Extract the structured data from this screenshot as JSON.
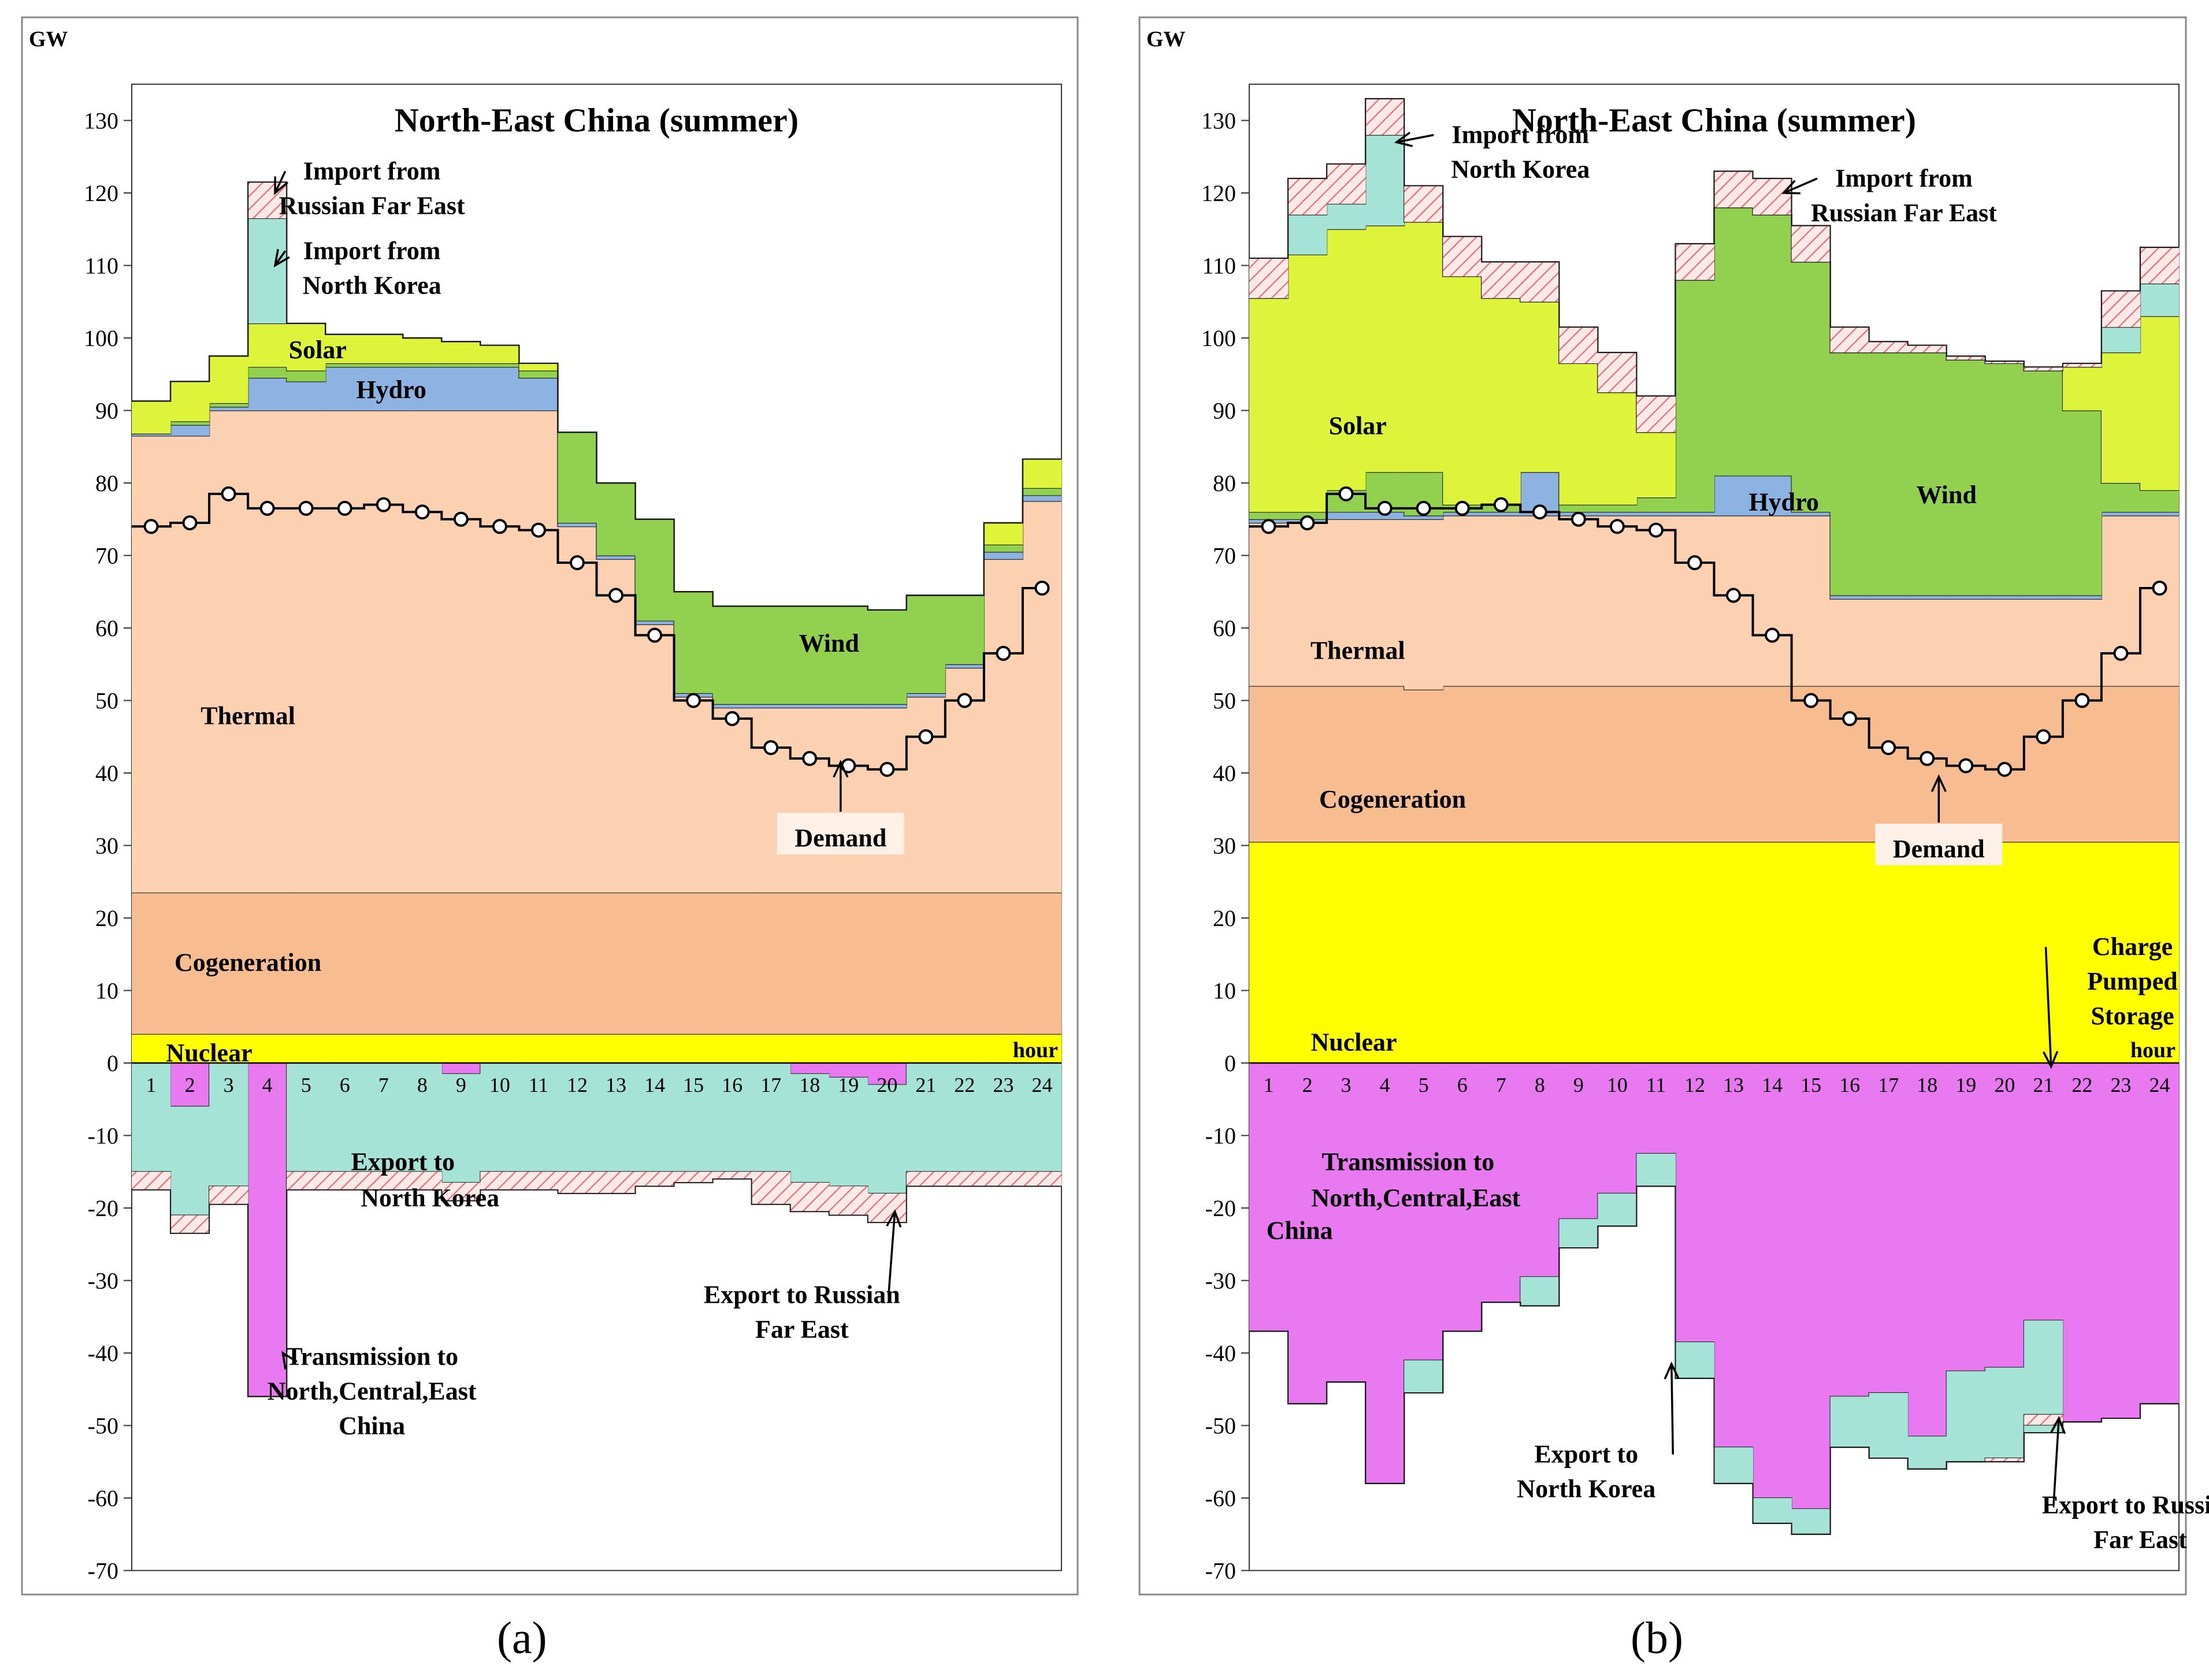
{
  "figure": {
    "labels": [
      "a",
      "b"
    ]
  },
  "colors": {
    "nuclear": "#ffff00",
    "cogeneration": "#f7bc8f",
    "thermal": "#fbd1b1",
    "hydro": "#8db3e2",
    "wind": "#92d050",
    "solar": "#ddf43a",
    "import_rfe": "#fbe0e0",
    "import_nk": "#a6e3d7",
    "transmission": "#e879f0",
    "export_nk": "#a6e3d7",
    "export_rfe": "#fbe0e0"
  },
  "chart_data": [
    {
      "type": "area",
      "panel": "a",
      "title": "North-East China (summer)",
      "ylabel": "GW",
      "xlabel": "hour",
      "ylim": [
        -70,
        135
      ],
      "yticks": [
        130,
        120,
        110,
        100,
        90,
        80,
        70,
        60,
        50,
        40,
        30,
        20,
        10,
        0,
        -10,
        -20,
        -30,
        -40,
        -50,
        -60,
        -70
      ],
      "x": [
        1,
        2,
        3,
        4,
        5,
        6,
        7,
        8,
        9,
        10,
        11,
        12,
        13,
        14,
        15,
        16,
        17,
        18,
        19,
        20,
        21,
        22,
        23,
        24
      ],
      "positive_series": [
        {
          "name": "Nuclear",
          "key": "nuclear",
          "values": [
            4,
            4,
            4,
            4,
            4,
            4,
            4,
            4,
            4,
            4,
            4,
            4,
            4,
            4,
            4,
            4,
            4,
            4,
            4,
            4,
            4,
            4,
            4,
            4
          ]
        },
        {
          "name": "Cogeneration",
          "key": "cogeneration",
          "values": [
            19.5,
            19.5,
            19.5,
            19.5,
            19.5,
            19.5,
            19.5,
            19.5,
            19.5,
            19.5,
            19.5,
            19.5,
            19.5,
            19.5,
            19.5,
            19.5,
            19.5,
            19.5,
            19.5,
            19.5,
            19.5,
            19.5,
            19.5,
            19.5
          ]
        },
        {
          "name": "Thermal",
          "key": "thermal",
          "values": [
            63,
            63,
            66.5,
            66.5,
            66.5,
            66.5,
            66.5,
            66.5,
            66.5,
            66.5,
            66.5,
            50.5,
            46,
            37,
            27,
            25.5,
            25.5,
            25.5,
            25.5,
            25.5,
            27,
            31,
            46,
            54
          ]
        },
        {
          "name": "Hydro",
          "key": "hydro",
          "values": [
            0.3,
            1.5,
            0.5,
            4.5,
            4,
            6,
            6,
            6,
            6,
            6,
            4.5,
            0.5,
            0.5,
            0.5,
            0.5,
            0.5,
            0.5,
            0.5,
            0.5,
            0.5,
            0.5,
            0.5,
            1,
            0.8
          ]
        },
        {
          "name": "Wind",
          "key": "wind",
          "values": [
            0,
            0.5,
            0.5,
            1.5,
            1.5,
            0.5,
            0.5,
            0.5,
            0.5,
            0.5,
            1,
            12.5,
            10,
            14,
            14,
            13.5,
            13.5,
            13.5,
            13.5,
            13,
            13.5,
            9.5,
            1,
            1
          ]
        },
        {
          "name": "Solar",
          "key": "solar",
          "values": [
            4.5,
            5.5,
            6.5,
            6,
            6.5,
            4,
            4,
            3.5,
            3,
            2.5,
            1,
            0,
            0,
            0,
            0,
            0,
            0,
            0,
            0,
            0,
            0,
            0,
            3,
            4
          ]
        },
        {
          "name": "Import from North Korea",
          "key": "import_nk",
          "values": [
            0,
            0,
            0,
            14.5,
            0,
            0,
            0,
            0,
            0,
            0,
            0,
            0,
            0,
            0,
            0,
            0,
            0,
            0,
            0,
            0,
            0,
            0,
            0,
            0
          ]
        },
        {
          "name": "Import from Russian Far East",
          "key": "import_rfe",
          "values": [
            0,
            0,
            0,
            5,
            0,
            0,
            0,
            0,
            0,
            0,
            0,
            0,
            0,
            0,
            0,
            0,
            0,
            0,
            0,
            0,
            0,
            0,
            0,
            0
          ]
        }
      ],
      "negative_series": [
        {
          "name": "Transmission to North,Central,East China",
          "key": "transmission",
          "values": [
            0,
            -6,
            0,
            -46,
            0,
            0,
            0,
            0,
            -1.5,
            0,
            0,
            0,
            0,
            0,
            0,
            0,
            0,
            -1.5,
            -2,
            -3,
            0,
            0,
            0,
            0
          ]
        },
        {
          "name": "Export to North Korea",
          "key": "export_nk",
          "values": [
            -15,
            -15,
            -17,
            0,
            -15,
            -15,
            -15,
            -15,
            -15,
            -15,
            -15,
            -15,
            -15,
            -15,
            -15,
            -15,
            -15,
            -15,
            -15,
            -15,
            -15,
            -15,
            -15,
            -15
          ]
        },
        {
          "name": "Export to Russian Far East",
          "key": "export_rfe",
          "values": [
            -2.5,
            -2.5,
            -2.5,
            0,
            -2.5,
            -2.5,
            -2.5,
            -2.5,
            -2.5,
            -2.5,
            -2.5,
            -3,
            -3,
            -2,
            -1.5,
            -1,
            -4.5,
            -4,
            -4,
            -4,
            -2,
            -2,
            -2,
            -2
          ]
        }
      ],
      "demand": [
        74,
        74.5,
        78.5,
        76.5,
        76.5,
        76.5,
        77,
        76,
        75,
        74,
        73.5,
        69,
        64.5,
        59,
        50,
        47.5,
        43.5,
        42,
        41,
        40.5,
        45,
        50,
        56.5,
        65.5
      ],
      "series_labels": [
        {
          "text": "Thermal",
          "x": 3.5,
          "y": 48
        },
        {
          "text": "Cogeneration",
          "x": 3.5,
          "y": 14
        },
        {
          "text": "Nuclear",
          "x": 2.5,
          "y": 1.5
        },
        {
          "text": "Hydro",
          "x": 7.2,
          "y": 93
        },
        {
          "text": "Solar",
          "x": 5.3,
          "y": 98.5
        },
        {
          "text": "Wind",
          "x": 18.5,
          "y": 58
        },
        {
          "text": "Export to",
          "x": 7.5,
          "y": -13.5
        },
        {
          "text": "North Korea",
          "x": 8.2,
          "y": -18.5
        }
      ],
      "annotations": [
        {
          "lines": [
            "Import from",
            "Russian Far East"
          ],
          "text_x": 6.7,
          "text_y": 123,
          "arrow_to": [
            4.2,
            120
          ]
        },
        {
          "lines": [
            "Import from",
            "North Korea"
          ],
          "text_x": 6.7,
          "text_y": 112,
          "arrow_to": [
            4.2,
            110
          ]
        },
        {
          "lines": [
            "Demand"
          ],
          "text_x": 18.8,
          "text_y": 31,
          "arrow_to": [
            18.8,
            41.5
          ],
          "boxed": true
        },
        {
          "lines": [
            "Export to Russian",
            "Far East"
          ],
          "text_x": 17.8,
          "text_y": -32,
          "arrow_to": [
            20.2,
            -20.5
          ]
        },
        {
          "lines": [
            "Transmission to",
            "North,Central,East",
            "China"
          ],
          "text_x": 6.7,
          "text_y": -40.5,
          "arrow_to": [
            4.4,
            -40
          ]
        }
      ]
    },
    {
      "type": "area",
      "panel": "b",
      "title": "North-East China (summer)",
      "ylabel": "GW",
      "xlabel": "hour",
      "ylim": [
        -70,
        135
      ],
      "yticks": [
        130,
        120,
        110,
        100,
        90,
        80,
        70,
        60,
        50,
        40,
        30,
        20,
        10,
        0,
        -10,
        -20,
        -30,
        -40,
        -50,
        -60,
        -70
      ],
      "x": [
        1,
        2,
        3,
        4,
        5,
        6,
        7,
        8,
        9,
        10,
        11,
        12,
        13,
        14,
        15,
        16,
        17,
        18,
        19,
        20,
        21,
        22,
        23,
        24
      ],
      "positive_series": [
        {
          "name": "Nuclear",
          "key": "nuclear",
          "values": [
            30.5,
            30.5,
            30.5,
            30.5,
            30.5,
            30.5,
            30.5,
            30.5,
            30.5,
            30.5,
            30.5,
            30.5,
            30.5,
            30.5,
            30.5,
            30.5,
            30.5,
            30.5,
            30.5,
            30.5,
            30.5,
            30.5,
            30.5,
            30.5
          ]
        },
        {
          "name": "Cogeneration",
          "key": "cogeneration",
          "values": [
            21.5,
            21.5,
            21.5,
            21.5,
            21,
            21.5,
            21.5,
            21.5,
            21.5,
            21.5,
            21.5,
            21.5,
            21.5,
            21.5,
            21.5,
            21.5,
            21.5,
            21.5,
            21.5,
            21.5,
            21.5,
            21.5,
            21.5,
            21.5
          ]
        },
        {
          "name": "Thermal",
          "key": "thermal",
          "values": [
            22.5,
            22.5,
            23,
            23,
            23.5,
            23.5,
            23.5,
            23.5,
            23.5,
            23.5,
            23.5,
            23.5,
            23.5,
            23.5,
            23.5,
            12,
            12,
            12,
            12,
            12,
            12,
            12,
            23.5,
            23.5
          ]
        },
        {
          "name": "Hydro",
          "key": "hydro",
          "values": [
            0.5,
            0.5,
            1,
            1,
            0.5,
            0.5,
            0.5,
            6,
            0.5,
            0.5,
            0.5,
            0.5,
            5.5,
            5.5,
            0.5,
            0.5,
            0.5,
            0.5,
            0.5,
            0.5,
            0.5,
            0.5,
            0.5,
            0.5
          ]
        },
        {
          "name": "Wind",
          "key": "wind",
          "values": [
            1,
            1,
            3,
            5.5,
            6,
            1,
            1,
            0,
            1,
            1,
            2,
            32,
            37,
            36,
            34.5,
            33.5,
            33.5,
            33.5,
            32.5,
            32,
            31,
            25.5,
            4,
            3
          ]
        },
        {
          "name": "Solar",
          "key": "solar",
          "values": [
            29.5,
            35.5,
            36,
            34,
            34.5,
            31.5,
            28.5,
            23.5,
            19.5,
            15.5,
            9,
            0,
            0,
            0,
            0,
            0,
            0,
            0,
            0,
            0,
            0,
            6,
            18,
            24
          ]
        },
        {
          "name": "Import from North Korea",
          "key": "import_nk",
          "values": [
            0,
            5.5,
            3.5,
            12.5,
            0,
            0,
            0,
            0,
            0,
            0,
            0,
            0,
            0,
            0,
            0,
            0,
            0,
            0,
            0,
            0,
            0,
            0,
            3.5,
            4.5
          ]
        },
        {
          "name": "Import from Russian Far East",
          "key": "import_rfe",
          "values": [
            5.5,
            5,
            5.5,
            5,
            5,
            5.5,
            5,
            5.5,
            5,
            5.5,
            5,
            5,
            5,
            5,
            5,
            3.5,
            1.5,
            1,
            0.5,
            0.3,
            0.5,
            0.5,
            5,
            5
          ]
        }
      ],
      "negative_series": [
        {
          "name": "Transmission to North,Central,East China",
          "key": "transmission",
          "values": [
            -37,
            -47,
            -44,
            -58,
            -41,
            -37,
            -33,
            -29.5,
            -21.5,
            -18,
            -12.5,
            -38.5,
            -53,
            -60,
            -61.5,
            -46,
            -45.5,
            -51.5,
            -42.5,
            -42,
            -35.5,
            -49.5,
            -49,
            -47
          ]
        },
        {
          "name": "Export to North Korea",
          "key": "export_nk",
          "values": [
            0,
            0,
            0,
            0,
            -4.5,
            0,
            0,
            -4,
            -4,
            -4.5,
            -4.5,
            -5,
            -5,
            -3.5,
            -3.5,
            -7,
            -9,
            -4.5,
            -12.5,
            -12.5,
            -13,
            0,
            0,
            0
          ]
        },
        {
          "name": "Export to Russian Far East",
          "key": "export_rfe",
          "values": [
            0,
            0,
            0,
            0,
            0,
            0,
            0,
            0,
            0,
            0,
            0,
            0,
            0,
            0,
            0,
            0,
            0,
            0,
            0,
            -0.5,
            -1.5,
            0,
            0,
            0
          ]
        },
        {
          "name": "Charge Pumped Storage",
          "key": "import_nk",
          "values": [
            0,
            0,
            0,
            0,
            0,
            0,
            0,
            0,
            0,
            0,
            0,
            0,
            0,
            0,
            0,
            0,
            0,
            0,
            0,
            0,
            -1,
            0,
            0,
            0
          ]
        }
      ],
      "demand": [
        74,
        74.5,
        78.5,
        76.5,
        76.5,
        76.5,
        77,
        76,
        75,
        74,
        73.5,
        69,
        64.5,
        59,
        50,
        47.5,
        43.5,
        42,
        41,
        40.5,
        45,
        50,
        56.5,
        65.5
      ],
      "series_labels": [
        {
          "text": "Solar",
          "x": 3.3,
          "y": 88
        },
        {
          "text": "Thermal",
          "x": 3.3,
          "y": 57
        },
        {
          "text": "Cogeneration",
          "x": 4.2,
          "y": 36.5
        },
        {
          "text": "Nuclear",
          "x": 3.2,
          "y": 3
        },
        {
          "text": "Hydro",
          "x": 14.3,
          "y": 77.5
        },
        {
          "text": "Wind",
          "x": 18.5,
          "y": 78.5
        },
        {
          "text": "Transmission to",
          "x": 4.6,
          "y": -13.5
        },
        {
          "text": "North,Central,East",
          "x": 4.8,
          "y": -18.5
        },
        {
          "text": "China",
          "x": 1.8,
          "y": -23
        }
      ],
      "annotations": [
        {
          "lines": [
            "Import from",
            "North Korea"
          ],
          "text_x": 7.5,
          "text_y": 128,
          "arrow_to": [
            4.3,
            127
          ]
        },
        {
          "lines": [
            "Import from",
            "Russian Far East"
          ],
          "text_x": 17.4,
          "text_y": 122,
          "arrow_to": [
            14.3,
            120
          ]
        },
        {
          "lines": [
            "Demand"
          ],
          "text_x": 18.3,
          "text_y": 29.5,
          "arrow_to": [
            18.3,
            39.5
          ],
          "boxed": true
        },
        {
          "lines": [
            "Charge",
            "Pumped",
            "Storage"
          ],
          "text_x": 23.3,
          "text_y": 16,
          "arrow_to": [
            21.2,
            -0.5
          ]
        },
        {
          "lines": [
            "Export to",
            "North Korea"
          ],
          "text_x": 9.2,
          "text_y": -54,
          "arrow_to": [
            11.4,
            -41.5
          ]
        },
        {
          "lines": [
            "Export to Russian",
            "Far East"
          ],
          "text_x": 23.5,
          "text_y": -61,
          "arrow_to": [
            21.4,
            -49
          ]
        }
      ]
    }
  ],
  "captions": {
    "a": "(a)",
    "b": "(b)"
  }
}
